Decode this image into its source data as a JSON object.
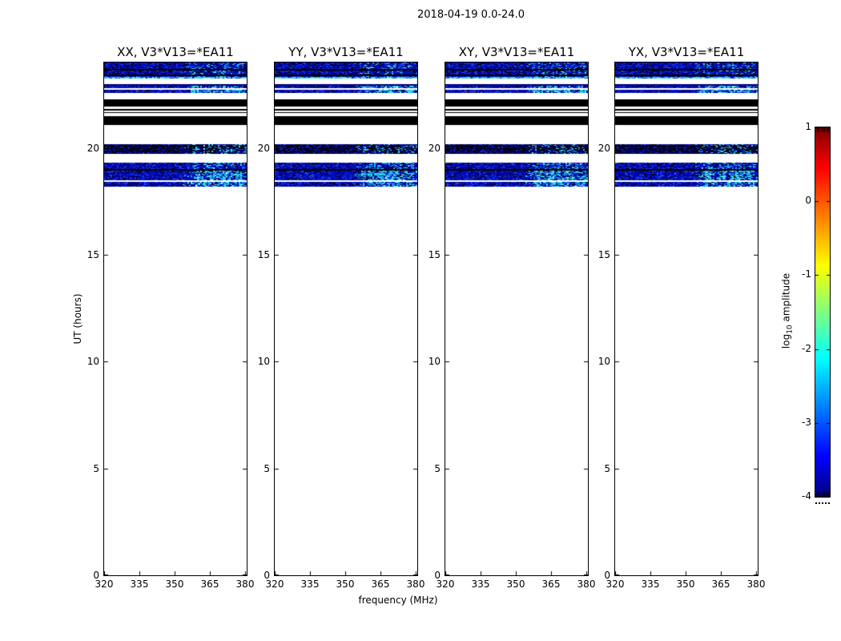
{
  "figure": {
    "background": "#ffffff",
    "frame_color": "#000000"
  },
  "chart_data": {
    "type": "heatmap",
    "title": "2018-04-19 0.0-24.0",
    "xlabel": "frequency (MHz)",
    "ylabel": "UT (hours)",
    "xlim": [
      320,
      380.7
    ],
    "ylim": [
      0,
      24
    ],
    "x_ticks": [
      320,
      335,
      350,
      365,
      380
    ],
    "y_ticks": [
      0,
      5,
      10,
      15,
      20
    ],
    "grid": false,
    "panels": [
      {
        "title": "XX, V3*V13=*EA11"
      },
      {
        "title": "YY, V3*V13=*EA11"
      },
      {
        "title": "XY, V3*V13=*EA11"
      },
      {
        "title": "YX, V3*V13=*EA11"
      }
    ],
    "colorbar": {
      "label_prefix": "log",
      "label_sub": "10",
      "label_suffix": " amplitude",
      "ticks": [
        1,
        0,
        -1,
        -2,
        -3,
        -4
      ],
      "range": [
        -4,
        1
      ],
      "colormap": "jet",
      "colormap_stops": [
        [
          0,
          "#00007f"
        ],
        [
          0.11,
          "#0000ff"
        ],
        [
          0.375,
          "#00ffff"
        ],
        [
          0.625,
          "#ffff00"
        ],
        [
          0.89,
          "#ff0000"
        ],
        [
          1,
          "#7f0000"
        ]
      ]
    },
    "bands": [
      {
        "ut": [
          24.0,
          23.33
        ],
        "kind": "noise",
        "bright": 0.35,
        "rowlines": true
      },
      {
        "ut": [
          23.33,
          23.26
        ],
        "kind": "cyan"
      },
      {
        "ut": [
          22.99,
          22.92
        ],
        "kind": "dim"
      },
      {
        "ut": [
          22.92,
          22.79
        ],
        "kind": "noise",
        "bright": 0.95
      },
      {
        "ut": [
          22.74,
          22.58
        ],
        "kind": "noise",
        "bright": 0.95
      },
      {
        "ut": [
          22.28,
          21.94
        ],
        "kind": "black"
      },
      {
        "ut": [
          21.83,
          21.75
        ],
        "kind": "black"
      },
      {
        "ut": [
          21.69,
          21.63
        ],
        "kind": "black"
      },
      {
        "ut": [
          21.49,
          21.08
        ],
        "kind": "black"
      },
      {
        "ut": [
          20.18,
          19.74
        ],
        "kind": "noise_dark",
        "bright": 0.35
      },
      {
        "ut": [
          19.31,
          19.01
        ],
        "kind": "noise",
        "bright": 0.55
      },
      {
        "ut": [
          19.01,
          18.93
        ],
        "kind": "black"
      },
      {
        "ut": [
          18.93,
          18.49
        ],
        "kind": "noise",
        "bright": 0.95
      },
      {
        "ut": [
          18.41,
          18.17
        ],
        "kind": "noise",
        "bright": 0.85
      }
    ],
    "bright_patch_centers_mhz": [
      359,
      365.5,
      371,
      377
    ],
    "palettes": {
      "noise_base": [
        "#000000",
        "#000090",
        "#0008b8",
        "#0018d8",
        "#1030e8",
        "#2a52f8"
      ],
      "noise_dark": [
        "#000000",
        "#000070",
        "#0000a0",
        "#0515c8",
        "#1838e8"
      ],
      "dim": [
        "#000060",
        "#000088",
        "#0000b0"
      ],
      "cyan": [
        "#18c8e8",
        "#30d8e0",
        "#55e8e0",
        "#00b0f0",
        "#86f0ea"
      ],
      "sparkle": "#eaffff",
      "black": "#000000"
    }
  }
}
